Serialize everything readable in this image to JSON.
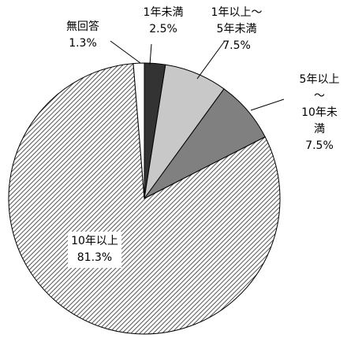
{
  "chart_data": {
    "type": "pie",
    "categories": [
      "1年未満",
      "1年以上～\n5年未満",
      "5年以上～\n10年未満",
      "10年以上",
      "無回答"
    ],
    "values": [
      2.5,
      7.5,
      7.5,
      81.3,
      1.3
    ],
    "value_labels": [
      "2.5%",
      "7.5%",
      "7.5%",
      "81.3%",
      "1.3%"
    ],
    "colors": [
      "#333333",
      "#c8c8c8",
      "#808080",
      "hatch",
      "#ffffff"
    ]
  }
}
